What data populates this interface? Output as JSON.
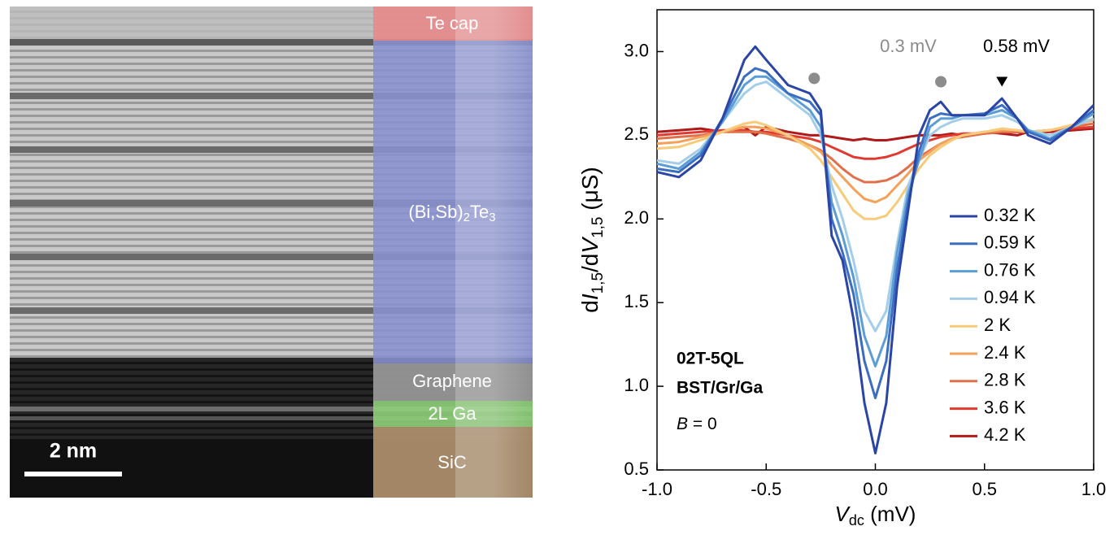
{
  "micrograph": {
    "layers": [
      "Te cap",
      [
        "(Bi,Sb)",
        "2",
        "Te",
        "3"
      ],
      "Graphene",
      "2L Ga",
      "SiC"
    ],
    "scale_bar": "2 nm"
  },
  "chart_data": {
    "type": "line",
    "x_label": [
      "V",
      "dc",
      " (mV)"
    ],
    "y_label": [
      "d",
      "I",
      "1,5",
      "/d",
      "V",
      "1,5",
      " (μS)"
    ],
    "xlim": [
      -1.0,
      1.0
    ],
    "ylim": [
      0.5,
      3.25
    ],
    "xticks": [
      {
        "value": -1.0,
        "label": "-1.0"
      },
      -0.5,
      {
        "value": 0.0,
        "label": "0.0"
      },
      0.5,
      {
        "value": 1.0,
        "label": "1.0"
      }
    ],
    "yticks": [
      0.5,
      {
        "value": 1.0,
        "label": "1.0"
      },
      1.5,
      {
        "value": 2.0,
        "label": "2.0"
      },
      2.5,
      {
        "value": 3.0,
        "label": "3.0"
      }
    ],
    "x": [
      -1.0,
      -0.9,
      -0.8,
      -0.7,
      -0.6,
      -0.55,
      -0.5,
      -0.4,
      -0.3,
      -0.25,
      -0.2,
      -0.15,
      -0.1,
      -0.05,
      0,
      0.05,
      0.1,
      0.15,
      0.2,
      0.25,
      0.3,
      0.35,
      0.4,
      0.5,
      0.58,
      0.65,
      0.7,
      0.8,
      0.9,
      1.0
    ],
    "series": [
      {
        "name": "0.32 K",
        "color": "#2b45a6",
        "values": [
          2.28,
          2.25,
          2.35,
          2.6,
          2.95,
          3.03,
          2.95,
          2.8,
          2.75,
          2.65,
          1.9,
          1.75,
          1.4,
          0.9,
          0.6,
          0.9,
          1.6,
          2.05,
          2.5,
          2.65,
          2.7,
          2.62,
          2.62,
          2.62,
          2.72,
          2.6,
          2.5,
          2.45,
          2.55,
          2.68
        ]
      },
      {
        "name": "0.59 K",
        "color": "#3b6ec0",
        "values": [
          2.3,
          2.28,
          2.38,
          2.6,
          2.85,
          2.9,
          2.88,
          2.75,
          2.7,
          2.62,
          2.0,
          1.8,
          1.55,
          1.15,
          0.93,
          1.15,
          1.7,
          2.1,
          2.4,
          2.6,
          2.63,
          2.62,
          2.62,
          2.63,
          2.68,
          2.6,
          2.52,
          2.47,
          2.55,
          2.65
        ]
      },
      {
        "name": "0.76 K",
        "color": "#5c9dd6",
        "values": [
          2.33,
          2.3,
          2.4,
          2.58,
          2.8,
          2.85,
          2.85,
          2.75,
          2.65,
          2.55,
          2.1,
          1.9,
          1.65,
          1.3,
          1.12,
          1.3,
          1.8,
          2.15,
          2.35,
          2.55,
          2.6,
          2.6,
          2.62,
          2.62,
          2.65,
          2.6,
          2.53,
          2.48,
          2.55,
          2.63
        ]
      },
      {
        "name": "0.94 K",
        "color": "#a3cde8",
        "values": [
          2.35,
          2.33,
          2.42,
          2.58,
          2.75,
          2.8,
          2.82,
          2.72,
          2.62,
          2.5,
          2.2,
          2.0,
          1.75,
          1.45,
          1.33,
          1.45,
          1.85,
          2.2,
          2.35,
          2.5,
          2.55,
          2.58,
          2.6,
          2.6,
          2.62,
          2.58,
          2.53,
          2.5,
          2.55,
          2.6
        ]
      },
      {
        "name": "2 K",
        "color": "#f8cb7c",
        "values": [
          2.42,
          2.43,
          2.47,
          2.52,
          2.57,
          2.58,
          2.56,
          2.5,
          2.42,
          2.35,
          2.25,
          2.15,
          2.05,
          2.0,
          2.0,
          2.02,
          2.1,
          2.2,
          2.3,
          2.38,
          2.43,
          2.47,
          2.5,
          2.52,
          2.54,
          2.53,
          2.52,
          2.53,
          2.56,
          2.6
        ]
      },
      {
        "name": "2.4 K",
        "color": "#f4a15a",
        "values": [
          2.45,
          2.46,
          2.49,
          2.52,
          2.55,
          2.55,
          2.54,
          2.5,
          2.44,
          2.4,
          2.32,
          2.25,
          2.18,
          2.12,
          2.1,
          2.13,
          2.2,
          2.27,
          2.35,
          2.4,
          2.45,
          2.48,
          2.5,
          2.52,
          2.53,
          2.53,
          2.52,
          2.53,
          2.56,
          2.59
        ]
      },
      {
        "name": "2.8 K",
        "color": "#e0704a",
        "values": [
          2.48,
          2.49,
          2.5,
          2.52,
          2.52,
          2.52,
          2.51,
          2.48,
          2.44,
          2.41,
          2.36,
          2.3,
          2.25,
          2.22,
          2.22,
          2.23,
          2.26,
          2.31,
          2.37,
          2.41,
          2.45,
          2.48,
          2.49,
          2.51,
          2.52,
          2.52,
          2.52,
          2.53,
          2.55,
          2.57
        ]
      },
      {
        "name": "3.6 K",
        "color": "#e03a30",
        "values": [
          2.5,
          2.51,
          2.52,
          2.53,
          2.53,
          2.52,
          2.52,
          2.5,
          2.48,
          2.46,
          2.43,
          2.4,
          2.37,
          2.36,
          2.36,
          2.37,
          2.39,
          2.42,
          2.45,
          2.47,
          2.49,
          2.5,
          2.51,
          2.51,
          2.52,
          2.52,
          2.52,
          2.53,
          2.54,
          2.55
        ]
      },
      {
        "name": "4.2 K",
        "color": "#b01a1a",
        "values": [
          2.52,
          2.53,
          2.54,
          2.52,
          2.55,
          2.5,
          2.55,
          2.52,
          2.5,
          2.5,
          2.49,
          2.48,
          2.47,
          2.48,
          2.47,
          2.47,
          2.48,
          2.49,
          2.5,
          2.5,
          2.5,
          2.51,
          2.5,
          2.52,
          2.51,
          2.5,
          2.52,
          2.52,
          2.53,
          2.54
        ]
      }
    ],
    "annotations": [
      {
        "text": "0.3 mV",
        "color": "#8c8c8c"
      },
      {
        "text": "0.58 mV",
        "color": "#000000"
      }
    ],
    "markers": [
      {
        "x": -0.28,
        "y": 2.84,
        "shape": "circle",
        "color": "#8c8c8c"
      },
      {
        "x": 0.3,
        "y": 2.82,
        "shape": "circle",
        "color": "#8c8c8c"
      },
      {
        "x": 0.58,
        "y": 2.82,
        "shape": "triangle",
        "color": "#000000"
      }
    ],
    "sample": [
      "02T-5QL",
      "BST/Gr/Ga"
    ],
    "condition": [
      "B",
      " = 0"
    ]
  }
}
